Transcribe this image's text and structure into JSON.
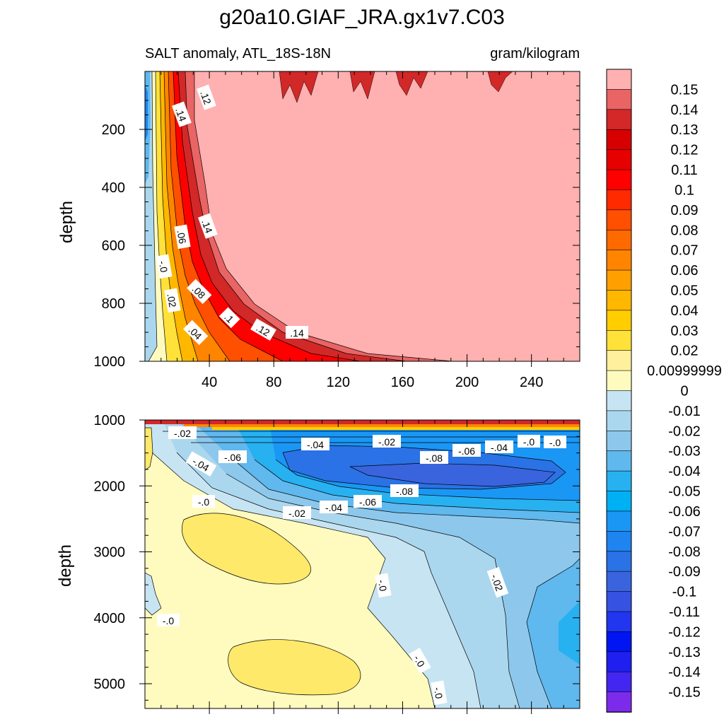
{
  "chart_data": {
    "type": "heatmap",
    "title": "g20a10.GIAF_JRA.gx1v7.C03",
    "subtitle_left": "SALT anomaly, ATL_18S-18N",
    "subtitle_right": "gram/kilogram",
    "ylabel": "depth",
    "x_ticks": [
      "40",
      "80",
      "120",
      "160",
      "200",
      "240"
    ],
    "x_range": [
      0,
      270
    ],
    "upper_panel": {
      "ylim": [
        0,
        1000
      ],
      "y_ticks": [
        "200",
        "400",
        "600",
        "800",
        "1000"
      ],
      "contour_labels": [
        ".12",
        ".14",
        ".06",
        ".14",
        "-.0",
        ".08",
        ".02",
        ".1",
        ".12",
        ".14",
        ".04"
      ]
    },
    "lower_panel": {
      "ylim": [
        1000,
        5375
      ],
      "y_ticks": [
        "1000",
        "2000",
        "3000",
        "4000",
        "5000"
      ],
      "contour_labels": [
        "-.02",
        "-.04",
        "-.06",
        "-.04",
        "-.02",
        "-.08",
        "-.06",
        "-.04",
        "-.0",
        "-.0",
        "-.08",
        "-.0",
        "-.02",
        "-.04",
        "-.06",
        "-.0",
        "-.02",
        "-.0",
        "-.0",
        "-.0"
      ]
    },
    "colorbar": {
      "levels": [
        "0.15",
        "0.14",
        "0.13",
        "0.12",
        "0.11",
        "0.1",
        "0.09",
        "0.08",
        "0.07",
        "0.06",
        "0.05",
        "0.04",
        "0.03",
        "0.02",
        "0.00999999",
        "0",
        "-0.01",
        "-0.02",
        "-0.03",
        "-0.04",
        "-0.05",
        "-0.06",
        "-0.07",
        "-0.08",
        "-0.09",
        "-0.1",
        "-0.11",
        "-0.12",
        "-0.13",
        "-0.14",
        "-0.15"
      ],
      "colors": [
        "#ffb0b0",
        "#e96464",
        "#d22828",
        "#d70000",
        "#e60000",
        "#ff0000",
        "#ff2a00",
        "#ff4f00",
        "#ff6a00",
        "#ff8500",
        "#ffa000",
        "#ffb700",
        "#ffcd00",
        "#ffe13a",
        "#fff09e",
        "#fffbbf",
        "#c7e4f2",
        "#abd7ee",
        "#8dc8ec",
        "#5fb8ee",
        "#27b1f0",
        "#00b0f4",
        "#1a97f5",
        "#1e84ef",
        "#2a72e5",
        "#3a64de",
        "#3552e3",
        "#2235ef",
        "#0015f2",
        "#1f1ff0",
        "#4326ef",
        "#7c2bea"
      ]
    }
  }
}
